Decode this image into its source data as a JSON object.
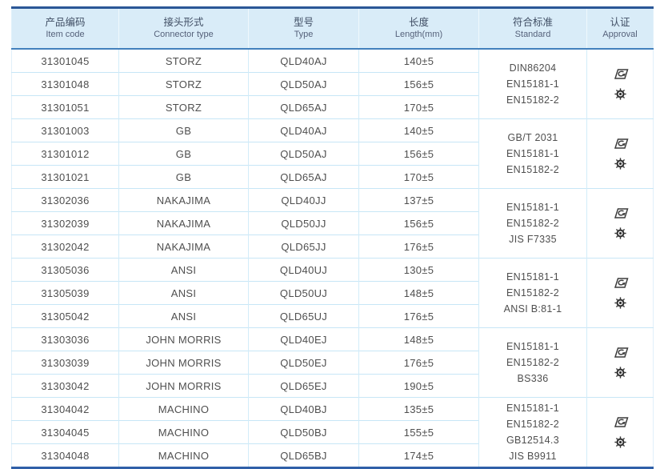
{
  "table": {
    "colors": {
      "header_bg": "#d9ecf8",
      "top_border": "#2b5797",
      "header_rule": "#4381bd",
      "row_line": "#c7e6f6",
      "bottom_border": "#2f5fa8",
      "header_text": "#3f4d63",
      "body_text": "#4f4f4f"
    },
    "header": {
      "columns": [
        {
          "zh": "产品编码",
          "en": "Item code"
        },
        {
          "zh": "接头形式",
          "en": "Connector type"
        },
        {
          "zh": "型号",
          "en": "Type"
        },
        {
          "zh": "长度",
          "en": "Length(mm)"
        },
        {
          "zh": "符合标准",
          "en": "Standard"
        },
        {
          "zh": "认证",
          "en": "Approval"
        }
      ]
    },
    "approval_icons": [
      {
        "name": "certification-logo-icon"
      },
      {
        "name": "gear-badge-icon"
      }
    ],
    "groups": [
      {
        "rows": [
          {
            "item_code": "31301045",
            "connector_type": "STORZ",
            "type": "QLD40AJ",
            "length": "140±5"
          },
          {
            "item_code": "31301048",
            "connector_type": "STORZ",
            "type": "QLD50AJ",
            "length": "156±5"
          },
          {
            "item_code": "31301051",
            "connector_type": "STORZ",
            "type": "QLD65AJ",
            "length": "170±5"
          }
        ],
        "standards": [
          "DIN86204",
          "EN15181-1",
          "EN15182-2"
        ]
      },
      {
        "rows": [
          {
            "item_code": "31301003",
            "connector_type": "GB",
            "type": "QLD40AJ",
            "length": "140±5"
          },
          {
            "item_code": "31301012",
            "connector_type": "GB",
            "type": "QLD50AJ",
            "length": "156±5"
          },
          {
            "item_code": "31301021",
            "connector_type": "GB",
            "type": "QLD65AJ",
            "length": "170±5"
          }
        ],
        "standards": [
          "GB/T 2031",
          "EN15181-1",
          "EN15182-2"
        ]
      },
      {
        "rows": [
          {
            "item_code": "31302036",
            "connector_type": "NAKAJIMA",
            "type": "QLD40JJ",
            "length": "137±5"
          },
          {
            "item_code": "31302039",
            "connector_type": "NAKAJIMA",
            "type": "QLD50JJ",
            "length": "156±5"
          },
          {
            "item_code": "31302042",
            "connector_type": "NAKAJIMA",
            "type": "QLD65JJ",
            "length": "176±5"
          }
        ],
        "standards": [
          "EN15181-1",
          "EN15182-2",
          "JIS F7335"
        ]
      },
      {
        "rows": [
          {
            "item_code": "31305036",
            "connector_type": "ANSI",
            "type": "QLD40UJ",
            "length": "130±5"
          },
          {
            "item_code": "31305039",
            "connector_type": "ANSI",
            "type": "QLD50UJ",
            "length": "148±5"
          },
          {
            "item_code": "31305042",
            "connector_type": "ANSI",
            "type": "QLD65UJ",
            "length": "176±5"
          }
        ],
        "standards": [
          "EN15181-1",
          "EN15182-2",
          "ANSI B:81-1"
        ]
      },
      {
        "rows": [
          {
            "item_code": "31303036",
            "connector_type": "JOHN MORRIS",
            "type": "QLD40EJ",
            "length": "148±5"
          },
          {
            "item_code": "31303039",
            "connector_type": "JOHN MORRIS",
            "type": "QLD50EJ",
            "length": "176±5"
          },
          {
            "item_code": "31303042",
            "connector_type": "JOHN MORRIS",
            "type": "QLD65EJ",
            "length": "190±5"
          }
        ],
        "standards": [
          "EN15181-1",
          "EN15182-2",
          "BS336"
        ]
      },
      {
        "rows": [
          {
            "item_code": "31304042",
            "connector_type": "MACHINO",
            "type": "QLD40BJ",
            "length": "135±5"
          },
          {
            "item_code": "31304045",
            "connector_type": "MACHINO",
            "type": "QLD50BJ",
            "length": "155±5"
          },
          {
            "item_code": "31304048",
            "connector_type": "MACHINO",
            "type": "QLD65BJ",
            "length": "174±5"
          }
        ],
        "standards": [
          "EN15181-1",
          "EN15182-2",
          "GB12514.3",
          "JIS B9911"
        ]
      }
    ]
  }
}
